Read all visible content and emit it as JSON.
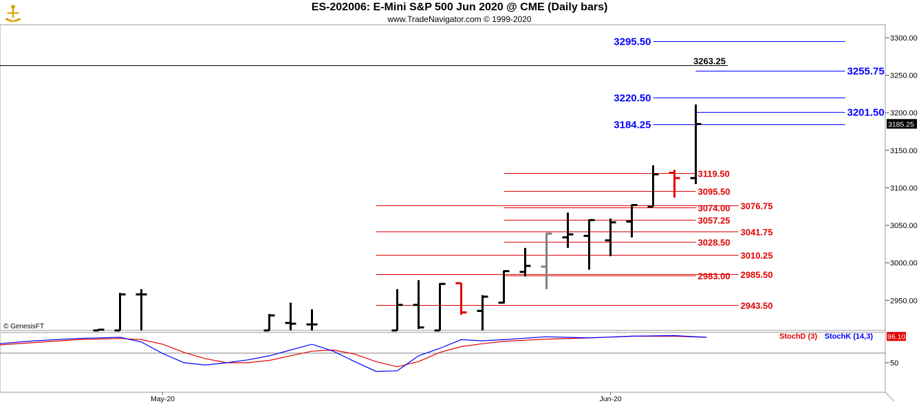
{
  "chart_data": {
    "type": "bar",
    "title": "ES-202006:  E-Mini S&P 500 Jun 2020 @ CME  (Daily bars)",
    "subtitle": "www.TradeNavigator.com © 1999-2020",
    "watermark": "© GenesisFT",
    "price_axis": {
      "ylim": [
        2910,
        3310
      ],
      "ticks": [
        "3300.00",
        "3250.00",
        "3200.00",
        "3150.00",
        "3100.00",
        "3050.00",
        "3000.00",
        "2950.00"
      ]
    },
    "last_price_label": "3185.25",
    "date_labels": [
      {
        "label": "May-20",
        "index": 6
      },
      {
        "label": "Jun-20",
        "index": 27
      }
    ],
    "bars": [
      {
        "index": 3,
        "open": 2910,
        "high": 2912,
        "low": 2910,
        "close": 2911,
        "color": "#000000"
      },
      {
        "index": 4,
        "open": 2910,
        "high": 2960,
        "low": 2910,
        "close": 2958,
        "color": "#000000"
      },
      {
        "index": 5,
        "open": 2958,
        "high": 2965,
        "low": 2910,
        "close": 2958,
        "color": "#000000"
      },
      {
        "index": 11,
        "open": 2910,
        "high": 2932,
        "low": 2910,
        "close": 2930,
        "color": "#000000"
      },
      {
        "index": 12,
        "open": 2920,
        "high": 2947,
        "low": 2910,
        "close": 2919,
        "color": "#000000"
      },
      {
        "index": 13,
        "open": 2918,
        "high": 2938,
        "low": 2910,
        "close": 2918,
        "color": "#000000"
      },
      {
        "index": 17,
        "open": 2910,
        "high": 2965,
        "low": 2910,
        "close": 2944,
        "color": "#000000"
      },
      {
        "index": 18,
        "open": 2944,
        "high": 2977,
        "low": 2912,
        "close": 2914,
        "color": "#000000"
      },
      {
        "index": 19,
        "open": 2910,
        "high": 2973,
        "low": 2910,
        "close": 2972,
        "color": "#000000"
      },
      {
        "index": 20,
        "open": 2973,
        "high": 2973,
        "low": 2931,
        "close": 2934,
        "color": "#e00000"
      },
      {
        "index": 21,
        "open": 2936,
        "high": 2957,
        "low": 2910,
        "close": 2955,
        "color": "#000000"
      },
      {
        "index": 22,
        "open": 2947,
        "high": 2990,
        "low": 2946,
        "close": 2989,
        "color": "#000000"
      },
      {
        "index": 23,
        "open": 2988,
        "high": 3020,
        "low": 2982,
        "close": 2996,
        "color": "#000000"
      },
      {
        "index": 24,
        "open": 2995,
        "high": 3040,
        "low": 2965,
        "close": 3039,
        "color": "#808080"
      },
      {
        "index": 25,
        "open": 3034,
        "high": 3067,
        "low": 3020,
        "close": 3038,
        "color": "#000000"
      },
      {
        "index": 26,
        "open": 3036,
        "high": 3058,
        "low": 2991,
        "close": 3057,
        "color": "#000000"
      },
      {
        "index": 27,
        "open": 3030,
        "high": 3059,
        "low": 3009,
        "close": 3054,
        "color": "#000000"
      },
      {
        "index": 28,
        "open": 3055,
        "high": 3078,
        "low": 3034,
        "close": 3077,
        "color": "#000000"
      },
      {
        "index": 29,
        "open": 3075,
        "high": 3130,
        "low": 3075,
        "close": 3118,
        "color": "#000000"
      },
      {
        "index": 30,
        "open": 3120,
        "high": 3124,
        "low": 3087,
        "close": 3113,
        "color": "#e00000"
      },
      {
        "index": 31,
        "open": 3113,
        "high": 3211,
        "low": 3105,
        "close": 3185,
        "color": "#000000"
      }
    ],
    "levels": [
      {
        "value": 3295.5,
        "label": "3295.50",
        "color": "#0000ff",
        "from": 29,
        "to": 38,
        "label_side": "left"
      },
      {
        "value": 3263.25,
        "label": "3263.25",
        "color": "#000000",
        "from": -99,
        "to": 32.5,
        "label_side": "right"
      },
      {
        "value": 3255.75,
        "label": "3255.75",
        "color": "#0000ff",
        "from": 31,
        "to": 38,
        "label_side": "right"
      },
      {
        "value": 3220.5,
        "label": "3220.50",
        "color": "#0000ff",
        "from": 29,
        "to": 38,
        "label_side": "left"
      },
      {
        "value": 3201.5,
        "label": "3201.50",
        "color": "#0000ff",
        "from": 31,
        "to": 38,
        "label_side": "right"
      },
      {
        "value": 3184.25,
        "label": "3184.25",
        "color": "#0000ff",
        "from": 29,
        "to": 38,
        "label_side": "left"
      },
      {
        "value": 3119.5,
        "label": "3119.50",
        "color": "#e00000",
        "from": 22,
        "to": 31,
        "label_side": "right"
      },
      {
        "value": 3095.5,
        "label": "3095.50",
        "color": "#e00000",
        "from": 22,
        "to": 31,
        "label_side": "right"
      },
      {
        "value": 3076.75,
        "label": "3076.75",
        "color": "#e00000",
        "from": 16,
        "to": 33,
        "label_side": "right"
      },
      {
        "value": 3074.0,
        "label": "3074.00",
        "color": "#e00000",
        "from": 22,
        "to": 31,
        "label_side": "right"
      },
      {
        "value": 3057.25,
        "label": "3057.25",
        "color": "#e00000",
        "from": 22,
        "to": 31,
        "label_side": "right"
      },
      {
        "value": 3041.75,
        "label": "3041.75",
        "color": "#e00000",
        "from": 16,
        "to": 33,
        "label_side": "right"
      },
      {
        "value": 3028.5,
        "label": "3028.50",
        "color": "#e00000",
        "from": 22,
        "to": 31,
        "label_side": "right"
      },
      {
        "value": 3010.25,
        "label": "3010.25",
        "color": "#e00000",
        "from": 16,
        "to": 33,
        "label_side": "right"
      },
      {
        "value": 2985.5,
        "label": "2985.50",
        "color": "#e00000",
        "from": 16,
        "to": 33,
        "label_side": "right"
      },
      {
        "value": 2983.0,
        "label": "2983.00",
        "color": "#e00000",
        "from": 22,
        "to": 31,
        "label_side": "right"
      },
      {
        "value": 2943.5,
        "label": "2943.50",
        "color": "#e00000",
        "from": 16,
        "to": 33,
        "label_side": "right"
      }
    ],
    "stochastic": {
      "ylim": [
        0,
        100
      ],
      "ticks": [
        "50"
      ],
      "last_value_label": "96.10",
      "series": [
        {
          "name": "StochD (3)",
          "color": "#e00000",
          "x": [
            -4,
            -2,
            0,
            2,
            4,
            5,
            6,
            7,
            8,
            9,
            10,
            11,
            12,
            13,
            14,
            15,
            16,
            17,
            18,
            19,
            20,
            21,
            22,
            24,
            26,
            28,
            30,
            31.5
          ],
          "values": [
            76,
            80,
            85,
            90,
            92,
            90,
            82,
            68,
            57,
            50,
            50,
            54,
            62,
            70,
            72,
            65,
            52,
            43,
            52,
            68,
            78,
            83,
            87,
            91,
            93,
            96,
            96,
            94
          ]
        },
        {
          "name": "StochK (14,3)",
          "color": "#0000ff",
          "x": [
            -4,
            -2,
            0,
            2,
            4,
            5,
            6,
            7,
            8,
            9,
            10,
            11,
            12,
            13,
            14,
            15,
            16,
            17,
            18,
            19,
            20,
            21,
            22,
            24,
            26,
            28,
            30,
            31.5
          ],
          "values": [
            75,
            82,
            88,
            92,
            94,
            86,
            66,
            50,
            46,
            50,
            55,
            62,
            72,
            82,
            70,
            52,
            35,
            36,
            62,
            75,
            90,
            88,
            90,
            95,
            93,
            96,
            97,
            94
          ]
        }
      ]
    }
  }
}
